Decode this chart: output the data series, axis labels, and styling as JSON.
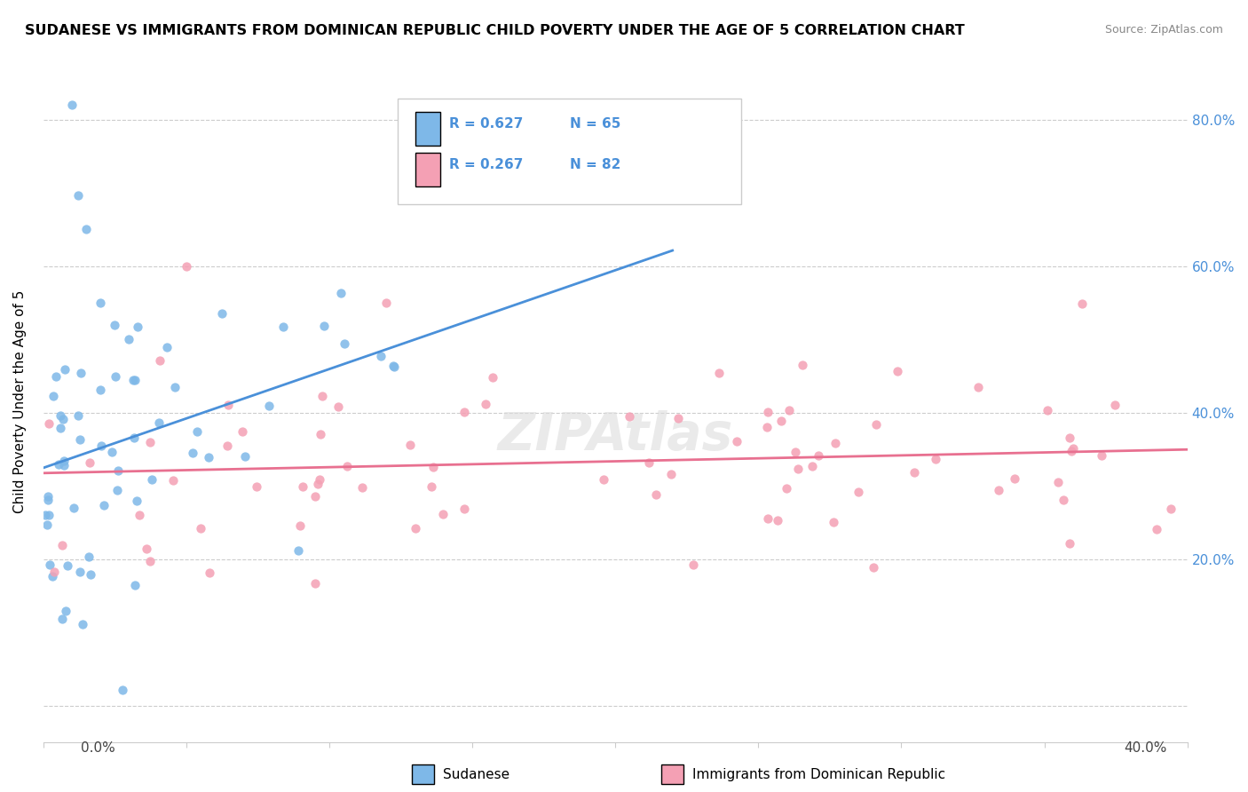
{
  "title": "SUDANESE VS IMMIGRANTS FROM DOMINICAN REPUBLIC CHILD POVERTY UNDER THE AGE OF 5 CORRELATION CHART",
  "source": "Source: ZipAtlas.com",
  "ylabel": "Child Poverty Under the Age of 5",
  "xlim": [
    0.0,
    0.4
  ],
  "ylim": [
    -0.05,
    0.88
  ],
  "sudanese_color": "#7eb8e8",
  "dominican_color": "#f4a0b4",
  "sudanese_line_color": "#4a90d9",
  "dominican_line_color": "#e87090",
  "sudanese_R": 0.627,
  "sudanese_N": 65,
  "dominican_R": 0.267,
  "dominican_N": 82,
  "legend_label_1": "Sudanese",
  "legend_label_2": "Immigrants from Dominican Republic",
  "background_color": "#ffffff"
}
